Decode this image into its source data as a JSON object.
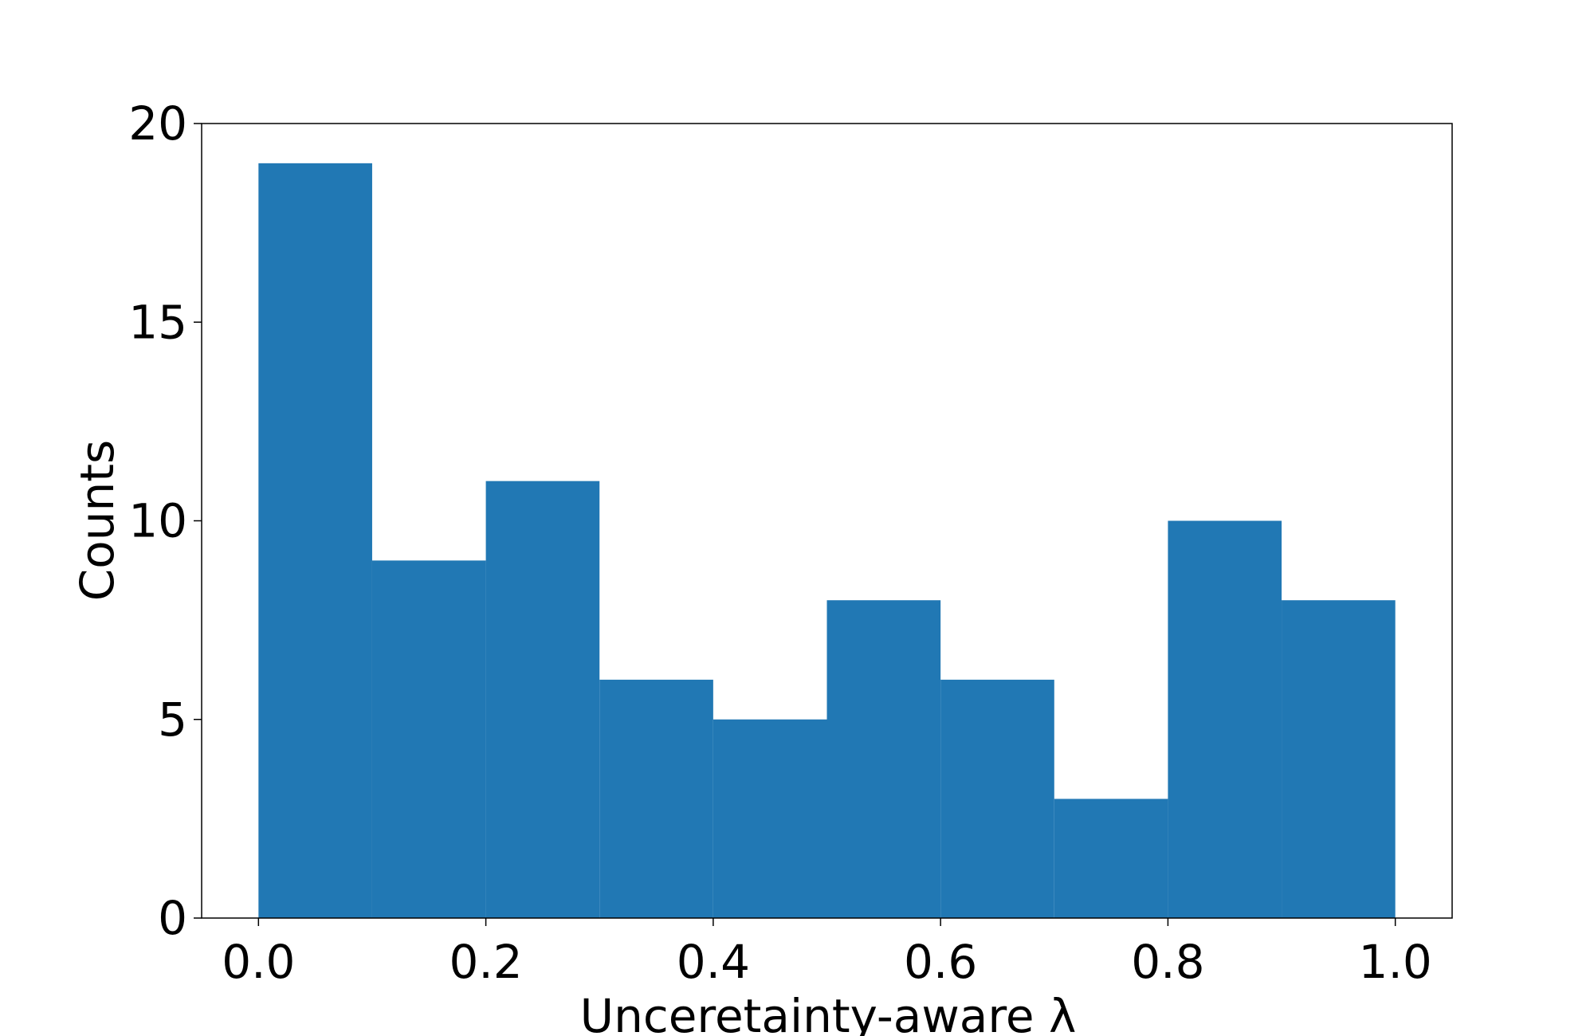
{
  "chart_data": {
    "type": "histogram",
    "xlabel": "Unceretainty-aware λ",
    "ylabel": "Counts",
    "bins": [
      0,
      0.1,
      0.2,
      0.3,
      0.4,
      0.5,
      0.6,
      0.7,
      0.8,
      0.9,
      1
    ],
    "values": [
      19,
      9,
      11,
      6,
      5,
      8,
      6,
      3,
      10,
      8
    ],
    "color": "#2178b4",
    "xlim": [
      -0.05,
      1.05
    ],
    "ylim": [
      0,
      20
    ],
    "xticks": [
      {
        "value": 0,
        "label": "0.0"
      },
      0.2,
      0.4,
      0.6,
      0.8,
      {
        "value": 1,
        "label": "1.0"
      }
    ],
    "yticks": [
      0,
      5,
      10,
      15,
      20
    ]
  }
}
